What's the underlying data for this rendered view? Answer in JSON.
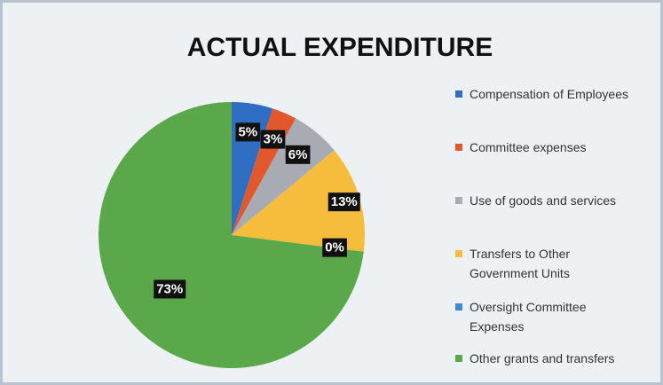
{
  "chart_data": {
    "type": "pie",
    "title": "ACTUAL EXPENDITURE",
    "categories": [
      "Compensation of Employees",
      "Committee expenses",
      "Use of goods and services",
      "Transfers to Other Government Units",
      "Oversight Committee Expenses",
      "Other grants and transfers"
    ],
    "values": [
      5,
      3,
      6,
      13,
      0,
      73
    ],
    "value_labels": [
      "5%",
      "3%",
      "6%",
      "13%",
      "0%",
      "73%"
    ],
    "colors": [
      "#2f6ec2",
      "#e2582c",
      "#a8aab4",
      "#f6bd3c",
      "#3f8ad4",
      "#5aa84a"
    ],
    "legend": "right"
  }
}
